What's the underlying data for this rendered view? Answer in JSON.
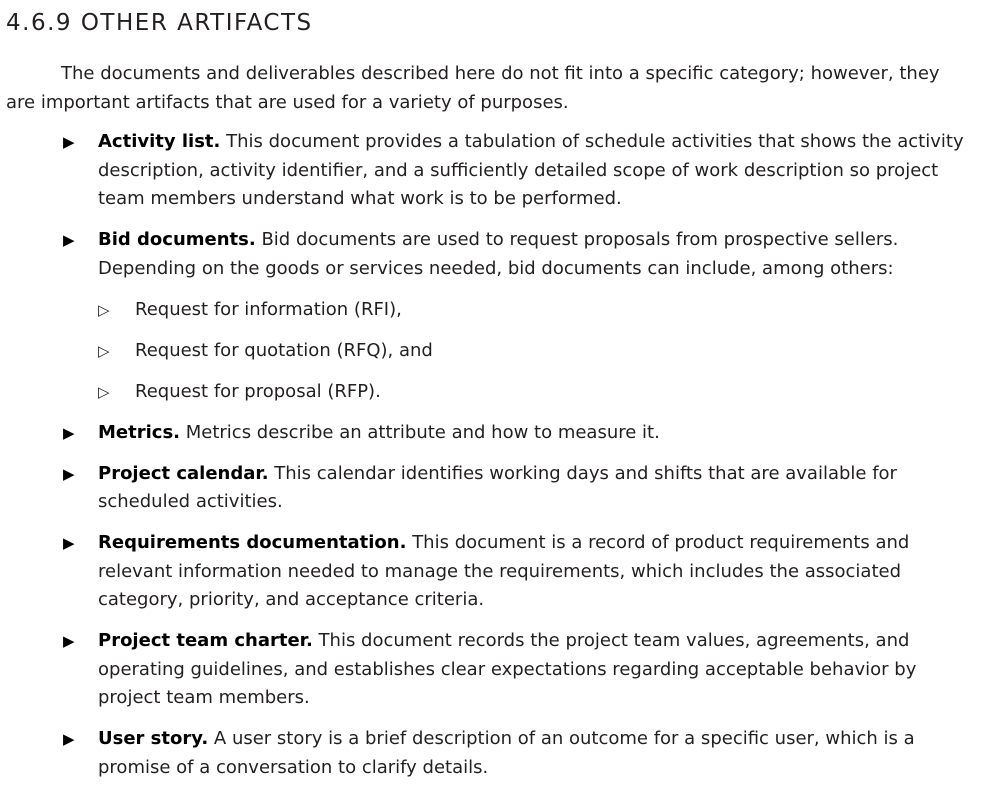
{
  "section": {
    "heading": "4.6.9 OTHER ARTIFACTS",
    "intro": "The documents and deliverables described here do not fit into a specific category; however, they are important artifacts that are used for a variety of purposes."
  },
  "bullets": {
    "main_glyph": "▶",
    "sub_glyph": "▷"
  },
  "items": [
    {
      "term": "Activity list.",
      "text": "This document provides a tabulation of schedule activities that shows the activity description, activity identifier, and a sufficiently detailed scope of work description so project team members understand what work is to be performed."
    },
    {
      "term": "Bid documents.",
      "text": "Bid documents are used to request proposals from prospective sellers. Depending on the goods or services needed, bid documents can include, among others:",
      "subitems": [
        "Request for information (RFI),",
        "Request for quotation (RFQ), and",
        "Request for proposal (RFP)."
      ]
    },
    {
      "term": "Metrics.",
      "text": "Metrics describe an attribute and how to measure it."
    },
    {
      "term": "Project calendar.",
      "text": "This calendar identifies working days and shifts that are available for scheduled activities."
    },
    {
      "term": "Requirements documentation.",
      "text": "This document is a record of product requirements and relevant information needed to manage the requirements, which includes the associated category, priority, and acceptance criteria."
    },
    {
      "term": "Project team charter.",
      "text": "This document records the project team values, agreements, and operating guidelines, and establishes clear expectations regarding acceptable behavior by project team members."
    },
    {
      "term": "User story.",
      "text": "A user story is a brief description of an outcome for a specific user, which is a promise of a conversation to clarify details."
    }
  ]
}
